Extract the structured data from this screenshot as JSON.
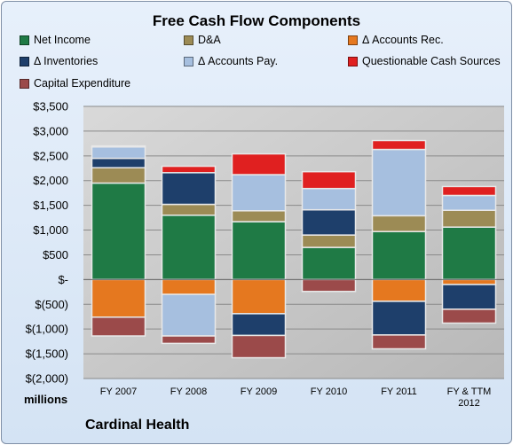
{
  "chart_data": {
    "type": "bar",
    "stacked": true,
    "title": "Free Cash Flow Components",
    "ylabel": "millions",
    "company": "Cardinal Health",
    "categories": [
      "FY 2007",
      "FY 2008",
      "FY 2009",
      "FY 2010",
      "FY 2011",
      "FY & TTM 2012"
    ],
    "ylim": [
      -2000,
      3500
    ],
    "yticks": [
      3500,
      3000,
      2500,
      2000,
      1500,
      1000,
      500,
      0,
      -500,
      -1000,
      -1500,
      -2000
    ],
    "ytick_labels": [
      "$3,500",
      "$3,000",
      "$2,500",
      "$2,000",
      "$1,500",
      "$1,000",
      "$500",
      "$-",
      "$(500)",
      "$(1,000)",
      "$(1,500)",
      "$(2,000)"
    ],
    "grid": true,
    "legend_position": "top",
    "series": [
      {
        "name": "Net Income",
        "color": "#1f7a45",
        "values": [
          1950,
          1300,
          1170,
          650,
          970,
          1060
        ]
      },
      {
        "name": "D&A",
        "color": "#9c8b55",
        "values": [
          310,
          220,
          220,
          250,
          320,
          340
        ]
      },
      {
        "name": "Δ Accounts Rec.",
        "color": "#e5781f",
        "values": [
          -760,
          -300,
          -690,
          0,
          -440,
          -100
        ]
      },
      {
        "name": "Δ Inventories",
        "color": "#1e3f6b",
        "values": [
          190,
          640,
          -440,
          510,
          -680,
          -500
        ]
      },
      {
        "name": "Δ Accounts Pay.",
        "color": "#a6bfdf",
        "values": [
          230,
          -840,
          730,
          430,
          1340,
          300
        ]
      },
      {
        "name": "Questionable Cash Sources",
        "color": "#e02020",
        "values": [
          20,
          130,
          420,
          340,
          180,
          180
        ]
      },
      {
        "name": "Capital Expenditure",
        "color": "#9b4a4a",
        "values": [
          -380,
          -150,
          -450,
          -240,
          -280,
          -280
        ]
      }
    ]
  }
}
